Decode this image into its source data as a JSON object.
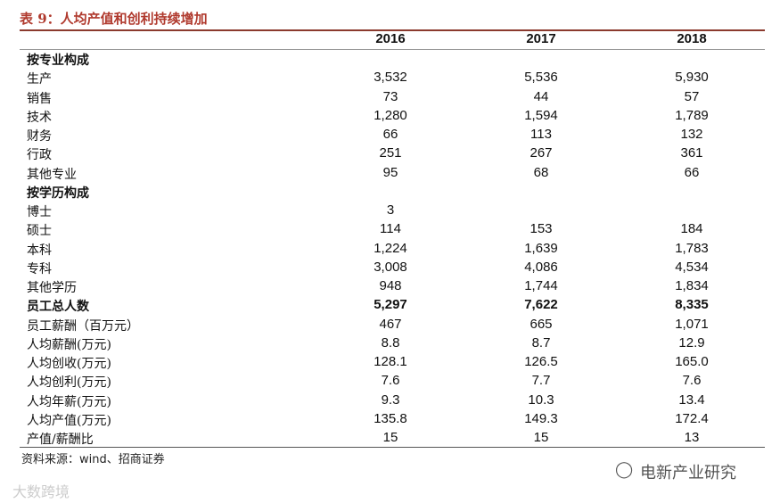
{
  "title": "表 9：人均产值和创利持续增加",
  "table": {
    "columns": [
      "2016",
      "2017",
      "2018"
    ],
    "rows": [
      {
        "label": "按专业构成",
        "bold": true,
        "values": [
          null,
          null,
          null
        ]
      },
      {
        "label": "生产",
        "values": [
          "3,532",
          "5,536",
          "5,930"
        ]
      },
      {
        "label": "销售",
        "values": [
          "73",
          "44",
          "57"
        ]
      },
      {
        "label": "技术",
        "values": [
          "1,280",
          "1,594",
          "1,789"
        ]
      },
      {
        "label": "财务",
        "values": [
          "66",
          "113",
          "132"
        ]
      },
      {
        "label": "行政",
        "values": [
          "251",
          "267",
          "361"
        ]
      },
      {
        "label": "其他专业",
        "values": [
          "95",
          "68",
          "66"
        ]
      },
      {
        "label": "按学历构成",
        "bold": true,
        "values": [
          null,
          null,
          null
        ]
      },
      {
        "label": "博士",
        "values": [
          "3",
          null,
          null
        ]
      },
      {
        "label": "硕士",
        "values": [
          "114",
          "153",
          "184"
        ]
      },
      {
        "label": "本科",
        "values": [
          "1,224",
          "1,639",
          "1,783"
        ]
      },
      {
        "label": "专科",
        "values": [
          "3,008",
          "4,086",
          "4,534"
        ]
      },
      {
        "label": "其他学历",
        "values": [
          "948",
          "1,744",
          "1,834"
        ]
      },
      {
        "label": "员工总人数",
        "bold": true,
        "values": [
          "5,297",
          "7,622",
          "8,335"
        ]
      },
      {
        "label": "员工薪酬（百万元）",
        "values": [
          "467",
          "665",
          "1,071"
        ]
      },
      {
        "label": "人均薪酬(万元)",
        "values": [
          "8.8",
          "8.7",
          "12.9"
        ]
      },
      {
        "label": "人均创收(万元)",
        "values": [
          "128.1",
          "126.5",
          "165.0"
        ]
      },
      {
        "label": "人均创利(万元)",
        "values": [
          "7.6",
          "7.7",
          "7.6"
        ]
      },
      {
        "label": "人均年薪(万元)",
        "values": [
          "9.3",
          "10.3",
          "13.4"
        ]
      },
      {
        "label": "人均产值(万元)",
        "values": [
          "135.8",
          "149.3",
          "172.4"
        ]
      },
      {
        "label": "产值/薪酬比",
        "values": [
          "15",
          "15",
          "13"
        ]
      }
    ]
  },
  "source": "资料来源：wind、招商证券",
  "watermarks": [
    "电新产业研究",
    "大数跨境"
  ]
}
